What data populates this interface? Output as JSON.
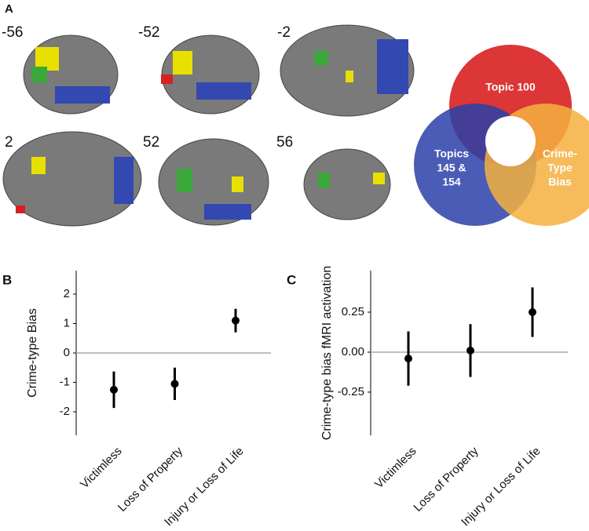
{
  "panel_a": {
    "label": "A",
    "slices": [
      "-56",
      "-52",
      "-2",
      "2",
      "52",
      "56"
    ],
    "venn": {
      "top": [
        "Topic 100"
      ],
      "left": [
        "Topics",
        "145 &",
        "154"
      ],
      "right": [
        "Crime-",
        "Type",
        "Bias"
      ]
    }
  },
  "chart_data": [
    {
      "type": "pointrange",
      "label": "B",
      "ylabel": "Crime-type Bias",
      "categories": [
        "Victimless",
        "Loss of Property",
        "Injury or Loss of Life"
      ],
      "values": [
        -1.25,
        -1.05,
        1.1
      ],
      "errors": [
        0.62,
        0.55,
        0.4
      ],
      "color": "#000000",
      "ylim": [
        -2.8,
        2.8
      ],
      "yticks": [
        -2,
        -1,
        0,
        1,
        2
      ],
      "refline": 0
    },
    {
      "type": "pointrange",
      "label": "C",
      "ylabel": "Crime-type bias fMRI activation",
      "categories": [
        "Victimless",
        "Loss of Property",
        "Injury or Loss of Life"
      ],
      "values": [
        -0.04,
        0.01,
        0.25
      ],
      "errors": [
        0.17,
        0.165,
        0.155
      ],
      "color": "#000000",
      "ylim": [
        -0.52,
        0.51
      ],
      "yticks": [
        -0.25,
        {
          "value": 0,
          "label": "0.00"
        },
        0.25
      ],
      "refline": 0
    }
  ]
}
